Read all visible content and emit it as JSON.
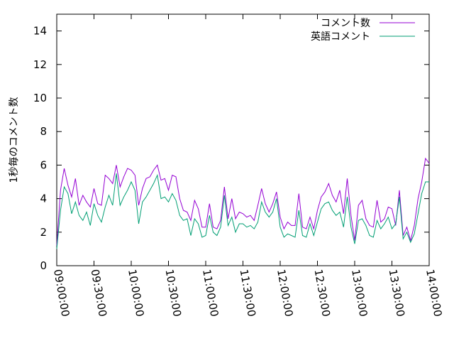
{
  "chart_data": {
    "type": "line",
    "title": "",
    "xlabel": "",
    "ylabel": "1秒毎のコメント数",
    "xlim": [
      "09:00:00",
      "14:00:00"
    ],
    "ylim": [
      0,
      15
    ],
    "x_ticks": [
      "09:00:00",
      "09:30:00",
      "10:00:00",
      "10:30:00",
      "11:00:00",
      "11:30:00",
      "12:00:00",
      "12:30:00",
      "13:00:00",
      "13:30:00",
      "14:00:00"
    ],
    "y_ticks": [
      "0",
      "2",
      "4",
      "6",
      "8",
      "10",
      "12",
      "14"
    ],
    "grid": false,
    "legend_position": "top-right",
    "series": [
      {
        "name": "コメント数",
        "color": "#9400d3",
        "points": [
          [
            "09:00:00",
            1.2
          ],
          [
            "09:03:00",
            4.5
          ],
          [
            "09:06:00",
            5.8
          ],
          [
            "09:09:00",
            4.8
          ],
          [
            "09:12:00",
            4.1
          ],
          [
            "09:15:00",
            5.2
          ],
          [
            "09:18:00",
            3.6
          ],
          [
            "09:21:00",
            4.2
          ],
          [
            "09:24:00",
            3.8
          ],
          [
            "09:27:00",
            3.5
          ],
          [
            "09:30:00",
            4.6
          ],
          [
            "09:33:00",
            3.7
          ],
          [
            "09:36:00",
            3.6
          ],
          [
            "09:39:00",
            5.4
          ],
          [
            "09:42:00",
            5.2
          ],
          [
            "09:45:00",
            4.9
          ],
          [
            "09:48:00",
            6.0
          ],
          [
            "09:51:00",
            4.7
          ],
          [
            "09:54:00",
            5.3
          ],
          [
            "09:57:00",
            5.8
          ],
          [
            "10:00:00",
            5.7
          ],
          [
            "10:03:00",
            5.4
          ],
          [
            "10:06:00",
            3.6
          ],
          [
            "10:09:00",
            4.6
          ],
          [
            "10:12:00",
            5.2
          ],
          [
            "10:15:00",
            5.3
          ],
          [
            "10:18:00",
            5.7
          ],
          [
            "10:21:00",
            6.0
          ],
          [
            "10:24:00",
            5.1
          ],
          [
            "10:27:00",
            5.2
          ],
          [
            "10:30:00",
            4.5
          ],
          [
            "10:33:00",
            5.4
          ],
          [
            "10:36:00",
            5.3
          ],
          [
            "10:39:00",
            4.0
          ],
          [
            "10:42:00",
            3.3
          ],
          [
            "10:45:00",
            3.2
          ],
          [
            "10:48:00",
            2.7
          ],
          [
            "10:51:00",
            3.9
          ],
          [
            "10:54:00",
            3.4
          ],
          [
            "10:57:00",
            2.3
          ],
          [
            "11:00:00",
            2.3
          ],
          [
            "11:03:00",
            3.7
          ],
          [
            "11:06:00",
            2.3
          ],
          [
            "11:09:00",
            2.2
          ],
          [
            "11:12:00",
            2.7
          ],
          [
            "11:15:00",
            4.7
          ],
          [
            "11:18:00",
            2.8
          ],
          [
            "11:21:00",
            4.0
          ],
          [
            "11:24:00",
            2.8
          ],
          [
            "11:27:00",
            3.2
          ],
          [
            "11:30:00",
            3.1
          ],
          [
            "11:33:00",
            2.9
          ],
          [
            "11:36:00",
            3.0
          ],
          [
            "11:39:00",
            2.7
          ],
          [
            "11:42:00",
            3.6
          ],
          [
            "11:45:00",
            4.6
          ],
          [
            "11:48:00",
            3.7
          ],
          [
            "11:51:00",
            3.2
          ],
          [
            "11:54:00",
            3.7
          ],
          [
            "11:57:00",
            4.4
          ],
          [
            "12:00:00",
            2.9
          ],
          [
            "12:03:00",
            2.2
          ],
          [
            "12:06:00",
            2.6
          ],
          [
            "12:09:00",
            2.4
          ],
          [
            "12:12:00",
            2.4
          ],
          [
            "12:15:00",
            4.3
          ],
          [
            "12:18:00",
            2.3
          ],
          [
            "12:21:00",
            2.2
          ],
          [
            "12:24:00",
            2.9
          ],
          [
            "12:27:00",
            2.2
          ],
          [
            "12:30:00",
            3.3
          ],
          [
            "12:33:00",
            4.1
          ],
          [
            "12:36:00",
            4.4
          ],
          [
            "12:39:00",
            4.9
          ],
          [
            "12:42:00",
            4.2
          ],
          [
            "12:45:00",
            3.8
          ],
          [
            "12:48:00",
            4.5
          ],
          [
            "12:51:00",
            3.1
          ],
          [
            "12:54:00",
            5.2
          ],
          [
            "12:57:00",
            3.0
          ],
          [
            "13:00:00",
            1.5
          ],
          [
            "13:03:00",
            3.6
          ],
          [
            "13:06:00",
            3.9
          ],
          [
            "13:09:00",
            2.8
          ],
          [
            "13:12:00",
            2.4
          ],
          [
            "13:15:00",
            2.3
          ],
          [
            "13:18:00",
            3.9
          ],
          [
            "13:21:00",
            2.6
          ],
          [
            "13:24:00",
            2.8
          ],
          [
            "13:27:00",
            3.5
          ],
          [
            "13:30:00",
            3.4
          ],
          [
            "13:33:00",
            2.4
          ],
          [
            "13:36:00",
            4.5
          ],
          [
            "13:39:00",
            1.8
          ],
          [
            "13:42:00",
            2.3
          ],
          [
            "13:45:00",
            1.5
          ],
          [
            "13:48:00",
            2.4
          ],
          [
            "13:51:00",
            4.0
          ],
          [
            "13:54:00",
            5.0
          ],
          [
            "13:57:00",
            6.4
          ],
          [
            "14:00:00",
            6.1
          ]
        ]
      },
      {
        "name": "英語コメント",
        "color": "#009e73",
        "points": [
          [
            "09:00:00",
            1.0
          ],
          [
            "09:03:00",
            3.3
          ],
          [
            "09:06:00",
            4.7
          ],
          [
            "09:09:00",
            4.3
          ],
          [
            "09:12:00",
            3.1
          ],
          [
            "09:15:00",
            3.8
          ],
          [
            "09:18:00",
            3.0
          ],
          [
            "09:21:00",
            2.7
          ],
          [
            "09:24:00",
            3.2
          ],
          [
            "09:27:00",
            2.4
          ],
          [
            "09:30:00",
            3.7
          ],
          [
            "09:33:00",
            3.0
          ],
          [
            "09:36:00",
            2.6
          ],
          [
            "09:39:00",
            3.5
          ],
          [
            "09:42:00",
            4.2
          ],
          [
            "09:45:00",
            3.6
          ],
          [
            "09:48:00",
            5.5
          ],
          [
            "09:51:00",
            3.6
          ],
          [
            "09:54:00",
            4.1
          ],
          [
            "09:57:00",
            4.5
          ],
          [
            "10:00:00",
            5.0
          ],
          [
            "10:03:00",
            4.5
          ],
          [
            "10:06:00",
            2.5
          ],
          [
            "10:09:00",
            3.8
          ],
          [
            "10:12:00",
            4.1
          ],
          [
            "10:15:00",
            4.5
          ],
          [
            "10:18:00",
            4.9
          ],
          [
            "10:21:00",
            5.4
          ],
          [
            "10:24:00",
            4.0
          ],
          [
            "10:27:00",
            4.1
          ],
          [
            "10:30:00",
            3.8
          ],
          [
            "10:33:00",
            4.3
          ],
          [
            "10:36:00",
            3.9
          ],
          [
            "10:39:00",
            3.0
          ],
          [
            "10:42:00",
            2.7
          ],
          [
            "10:45:00",
            2.8
          ],
          [
            "10:48:00",
            1.8
          ],
          [
            "10:51:00",
            2.8
          ],
          [
            "10:54:00",
            2.5
          ],
          [
            "10:57:00",
            1.7
          ],
          [
            "11:00:00",
            1.8
          ],
          [
            "11:03:00",
            3.0
          ],
          [
            "11:06:00",
            2.0
          ],
          [
            "11:09:00",
            1.8
          ],
          [
            "11:12:00",
            2.3
          ],
          [
            "11:15:00",
            4.2
          ],
          [
            "11:18:00",
            2.4
          ],
          [
            "11:21:00",
            2.9
          ],
          [
            "11:24:00",
            2.0
          ],
          [
            "11:27:00",
            2.5
          ],
          [
            "11:30:00",
            2.5
          ],
          [
            "11:33:00",
            2.3
          ],
          [
            "11:36:00",
            2.4
          ],
          [
            "11:39:00",
            2.2
          ],
          [
            "11:42:00",
            2.6
          ],
          [
            "11:45:00",
            3.8
          ],
          [
            "11:48:00",
            3.2
          ],
          [
            "11:51:00",
            2.9
          ],
          [
            "11:54:00",
            3.2
          ],
          [
            "11:57:00",
            4.0
          ],
          [
            "12:00:00",
            2.3
          ],
          [
            "12:03:00",
            1.7
          ],
          [
            "12:06:00",
            1.9
          ],
          [
            "12:09:00",
            1.8
          ],
          [
            "12:12:00",
            1.7
          ],
          [
            "12:15:00",
            3.3
          ],
          [
            "12:18:00",
            1.8
          ],
          [
            "12:21:00",
            1.7
          ],
          [
            "12:24:00",
            2.5
          ],
          [
            "12:27:00",
            1.8
          ],
          [
            "12:30:00",
            2.6
          ],
          [
            "12:33:00",
            3.4
          ],
          [
            "12:36:00",
            3.7
          ],
          [
            "12:39:00",
            3.8
          ],
          [
            "12:42:00",
            3.3
          ],
          [
            "12:45:00",
            3.0
          ],
          [
            "12:48:00",
            3.2
          ],
          [
            "12:51:00",
            2.3
          ],
          [
            "12:54:00",
            4.1
          ],
          [
            "12:57:00",
            2.3
          ],
          [
            "13:00:00",
            1.3
          ],
          [
            "13:03:00",
            2.7
          ],
          [
            "13:06:00",
            2.8
          ],
          [
            "13:09:00",
            2.4
          ],
          [
            "13:12:00",
            1.8
          ],
          [
            "13:15:00",
            1.7
          ],
          [
            "13:18:00",
            2.7
          ],
          [
            "13:21:00",
            2.2
          ],
          [
            "13:24:00",
            2.5
          ],
          [
            "13:27:00",
            2.9
          ],
          [
            "13:30:00",
            2.2
          ],
          [
            "13:33:00",
            2.5
          ],
          [
            "13:36:00",
            4.1
          ],
          [
            "13:39:00",
            1.6
          ],
          [
            "13:42:00",
            2.0
          ],
          [
            "13:45:00",
            1.4
          ],
          [
            "13:48:00",
            1.9
          ],
          [
            "13:51:00",
            3.1
          ],
          [
            "13:54:00",
            4.3
          ],
          [
            "13:57:00",
            5.0
          ],
          [
            "14:00:00",
            5.0
          ]
        ]
      }
    ]
  }
}
